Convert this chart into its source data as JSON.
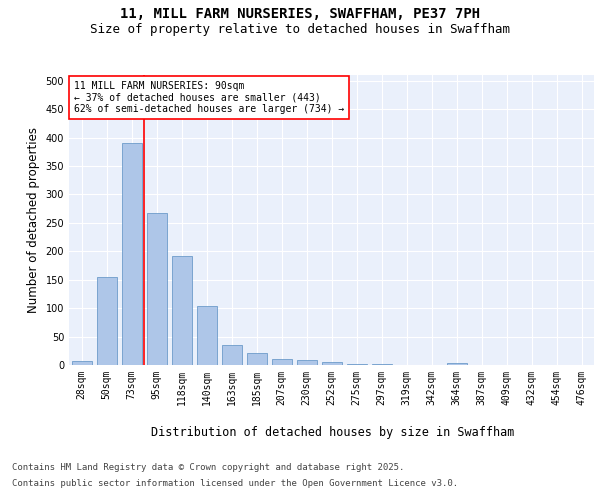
{
  "title_line1": "11, MILL FARM NURSERIES, SWAFFHAM, PE37 7PH",
  "title_line2": "Size of property relative to detached houses in Swaffham",
  "xlabel": "Distribution of detached houses by size in Swaffham",
  "ylabel": "Number of detached properties",
  "categories": [
    "28sqm",
    "50sqm",
    "73sqm",
    "95sqm",
    "118sqm",
    "140sqm",
    "163sqm",
    "185sqm",
    "207sqm",
    "230sqm",
    "252sqm",
    "275sqm",
    "297sqm",
    "319sqm",
    "342sqm",
    "364sqm",
    "387sqm",
    "409sqm",
    "432sqm",
    "454sqm",
    "476sqm"
  ],
  "values": [
    7,
    155,
    390,
    267,
    192,
    103,
    36,
    21,
    11,
    9,
    6,
    2,
    2,
    0,
    0,
    4,
    0,
    0,
    0,
    0,
    0
  ],
  "bar_color": "#aec6e8",
  "bar_edge_color": "#5a8fc2",
  "vline_color": "red",
  "annotation_text": "11 MILL FARM NURSERIES: 90sqm\n← 37% of detached houses are smaller (443)\n62% of semi-detached houses are larger (734) →",
  "annotation_box_color": "white",
  "annotation_box_edge": "red",
  "ylim": [
    0,
    510
  ],
  "yticks": [
    0,
    50,
    100,
    150,
    200,
    250,
    300,
    350,
    400,
    450,
    500
  ],
  "background_color": "#eaf0fb",
  "grid_color": "white",
  "footer_line1": "Contains HM Land Registry data © Crown copyright and database right 2025.",
  "footer_line2": "Contains public sector information licensed under the Open Government Licence v3.0.",
  "title_fontsize": 10,
  "subtitle_fontsize": 9,
  "axis_label_fontsize": 8.5,
  "tick_fontsize": 7,
  "annotation_fontsize": 7,
  "footer_fontsize": 6.5,
  "vline_pos": 2.5
}
